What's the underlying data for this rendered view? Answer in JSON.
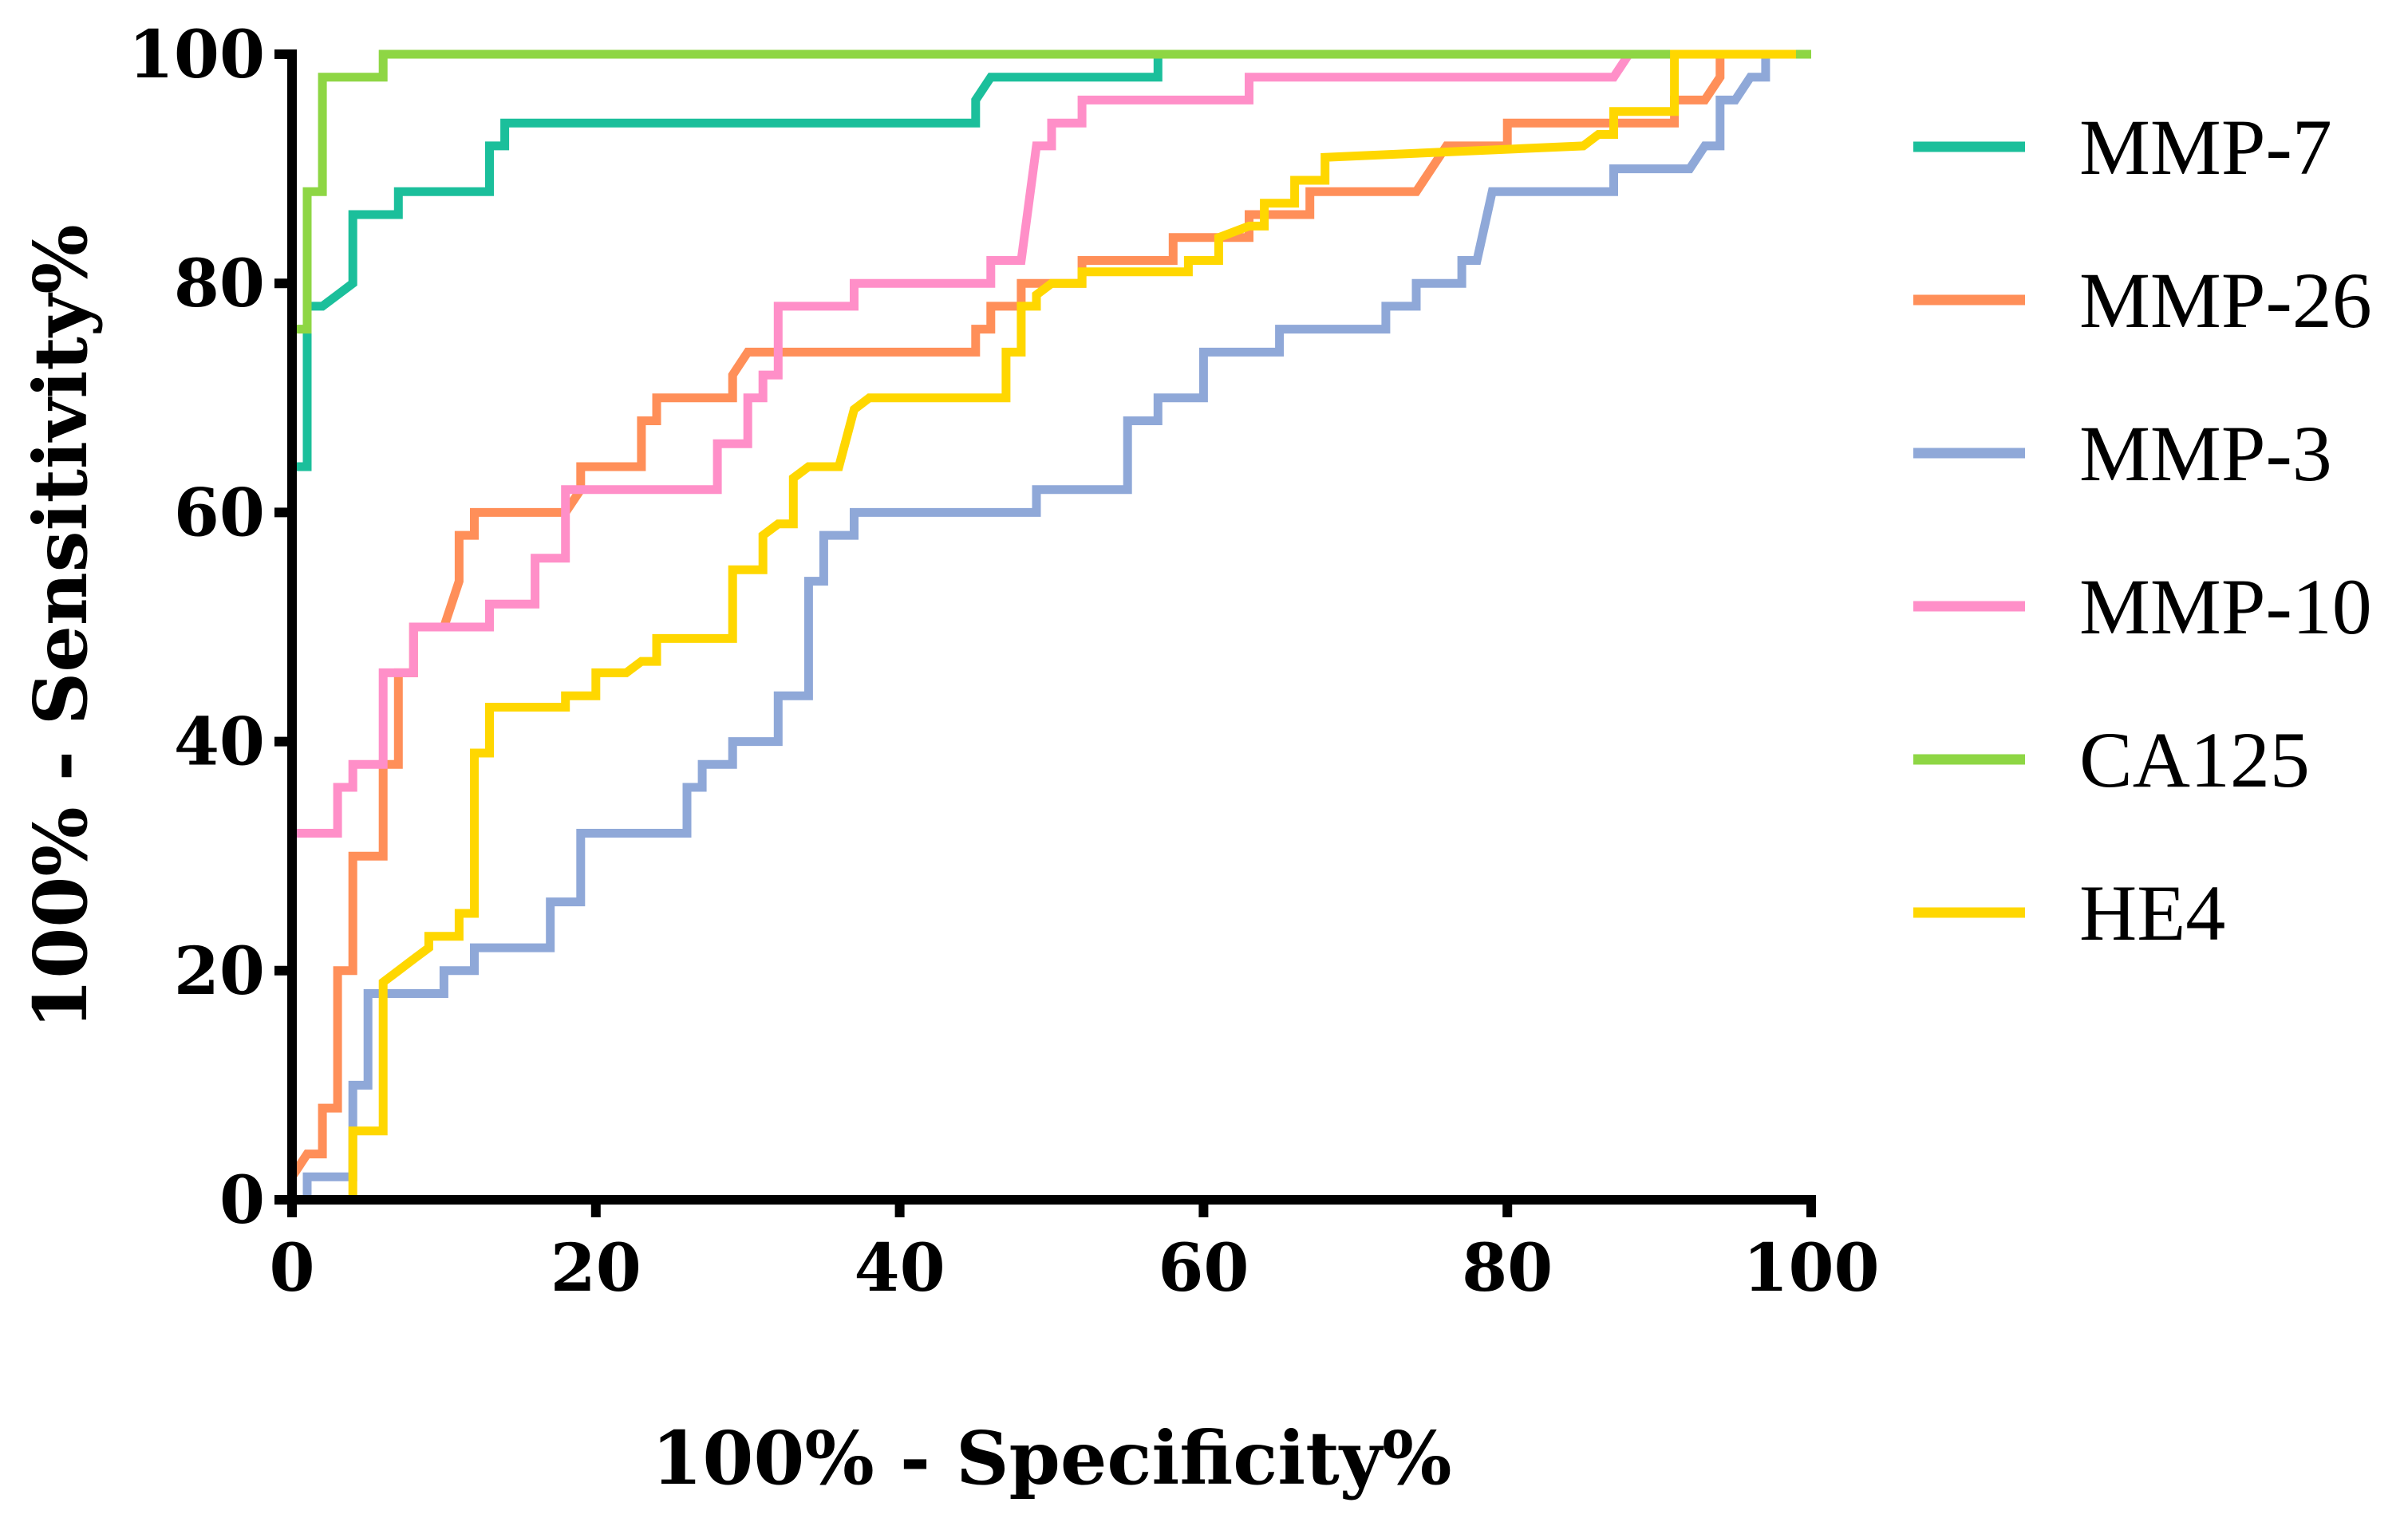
{
  "chart_data": {
    "type": "line",
    "title": "",
    "xlabel": "100% - Specificity%",
    "ylabel": "100% - Sensitivity%",
    "xlim": [
      0,
      100
    ],
    "ylim": [
      0,
      100
    ],
    "xticks": [
      "0",
      "20",
      "40",
      "60",
      "80",
      "100"
    ],
    "yticks": [
      "0",
      "20",
      "40",
      "60",
      "80",
      "100"
    ],
    "legend_position": "right",
    "grid": false,
    "series": [
      {
        "name": "MMP-7",
        "color": "#1bbf9b",
        "points": [
          [
            0,
            64
          ],
          [
            1,
            64
          ],
          [
            1,
            78
          ],
          [
            2,
            78
          ],
          [
            3,
            79
          ],
          [
            4,
            80
          ],
          [
            4,
            86
          ],
          [
            7,
            86
          ],
          [
            7,
            88
          ],
          [
            13,
            88
          ],
          [
            13,
            92
          ],
          [
            14,
            92
          ],
          [
            14,
            94
          ],
          [
            45,
            94
          ],
          [
            45,
            96
          ],
          [
            46,
            98
          ],
          [
            57,
            98
          ],
          [
            57,
            100
          ],
          [
            100,
            100
          ]
        ]
      },
      {
        "name": "MMP-26",
        "color": "#ff8f59",
        "points": [
          [
            0,
            2
          ],
          [
            1,
            4
          ],
          [
            2,
            4
          ],
          [
            2,
            8
          ],
          [
            3,
            8
          ],
          [
            3,
            20
          ],
          [
            4,
            20
          ],
          [
            4,
            30
          ],
          [
            6,
            30
          ],
          [
            6,
            38
          ],
          [
            7,
            38
          ],
          [
            7,
            46
          ],
          [
            8,
            46
          ],
          [
            8,
            50
          ],
          [
            10,
            50
          ],
          [
            11,
            54
          ],
          [
            11,
            58
          ],
          [
            12,
            58
          ],
          [
            12,
            60
          ],
          [
            18,
            60
          ],
          [
            19,
            62
          ],
          [
            19,
            64
          ],
          [
            23,
            64
          ],
          [
            23,
            68
          ],
          [
            24,
            68
          ],
          [
            24,
            70
          ],
          [
            29,
            70
          ],
          [
            29,
            72
          ],
          [
            30,
            74
          ],
          [
            45,
            74
          ],
          [
            45,
            76
          ],
          [
            46,
            76
          ],
          [
            46,
            78
          ],
          [
            48,
            78
          ],
          [
            48,
            80
          ],
          [
            52,
            80
          ],
          [
            52,
            82
          ],
          [
            58,
            82
          ],
          [
            58,
            84
          ],
          [
            63,
            84
          ],
          [
            63,
            86
          ],
          [
            67,
            86
          ],
          [
            67,
            88
          ],
          [
            74,
            88
          ],
          [
            75,
            90
          ],
          [
            76,
            92
          ],
          [
            80,
            92
          ],
          [
            80,
            94
          ],
          [
            91,
            94
          ],
          [
            91,
            96
          ],
          [
            93,
            96
          ],
          [
            94,
            98
          ],
          [
            94,
            100
          ],
          [
            99,
            100
          ]
        ]
      },
      {
        "name": "MMP-3",
        "color": "#8fa8d8",
        "points": [
          [
            0,
            0
          ],
          [
            1,
            0
          ],
          [
            1,
            2
          ],
          [
            4,
            2
          ],
          [
            4,
            10
          ],
          [
            5,
            10
          ],
          [
            5,
            18
          ],
          [
            10,
            18
          ],
          [
            10,
            20
          ],
          [
            12,
            20
          ],
          [
            12,
            22
          ],
          [
            17,
            22
          ],
          [
            17,
            26
          ],
          [
            19,
            26
          ],
          [
            19,
            32
          ],
          [
            26,
            32
          ],
          [
            26,
            36
          ],
          [
            27,
            36
          ],
          [
            27,
            38
          ],
          [
            29,
            38
          ],
          [
            29,
            40
          ],
          [
            32,
            40
          ],
          [
            32,
            44
          ],
          [
            34,
            44
          ],
          [
            34,
            54
          ],
          [
            35,
            54
          ],
          [
            35,
            58
          ],
          [
            37,
            58
          ],
          [
            37,
            60
          ],
          [
            49,
            60
          ],
          [
            49,
            62
          ],
          [
            55,
            62
          ],
          [
            55,
            68
          ],
          [
            57,
            68
          ],
          [
            57,
            70
          ],
          [
            60,
            70
          ],
          [
            60,
            74
          ],
          [
            65,
            74
          ],
          [
            65,
            76
          ],
          [
            72,
            76
          ],
          [
            72,
            78
          ],
          [
            74,
            78
          ],
          [
            74,
            80
          ],
          [
            77,
            80
          ],
          [
            77,
            82
          ],
          [
            78,
            82
          ],
          [
            79,
            88
          ],
          [
            87,
            88
          ],
          [
            87,
            90
          ],
          [
            92,
            90
          ],
          [
            93,
            92
          ],
          [
            94,
            92
          ],
          [
            94,
            96
          ],
          [
            95,
            96
          ],
          [
            96,
            98
          ],
          [
            97,
            98
          ],
          [
            97,
            100
          ],
          [
            100,
            100
          ]
        ]
      },
      {
        "name": "MMP-10",
        "color": "#ff8fc8",
        "points": [
          [
            0,
            32
          ],
          [
            3,
            32
          ],
          [
            3,
            36
          ],
          [
            4,
            36
          ],
          [
            4,
            38
          ],
          [
            6,
            38
          ],
          [
            6,
            46
          ],
          [
            8,
            46
          ],
          [
            8,
            50
          ],
          [
            13,
            50
          ],
          [
            13,
            52
          ],
          [
            16,
            52
          ],
          [
            16,
            56
          ],
          [
            18,
            56
          ],
          [
            18,
            62
          ],
          [
            28,
            62
          ],
          [
            28,
            66
          ],
          [
            30,
            66
          ],
          [
            30,
            70
          ],
          [
            31,
            70
          ],
          [
            31,
            72
          ],
          [
            32,
            72
          ],
          [
            32,
            78
          ],
          [
            37,
            78
          ],
          [
            37,
            80
          ],
          [
            46,
            80
          ],
          [
            46,
            82
          ],
          [
            48,
            82
          ],
          [
            49,
            92
          ],
          [
            50,
            92
          ],
          [
            50,
            94
          ],
          [
            52,
            94
          ],
          [
            52,
            96
          ],
          [
            63,
            96
          ],
          [
            63,
            98
          ],
          [
            87,
            98
          ],
          [
            88,
            100
          ],
          [
            100,
            100
          ]
        ]
      },
      {
        "name": "CA125",
        "color": "#8ed644",
        "points": [
          [
            0,
            0
          ],
          [
            0,
            76
          ],
          [
            1,
            76
          ],
          [
            1,
            88
          ],
          [
            2,
            88
          ],
          [
            2,
            98
          ],
          [
            6,
            98
          ],
          [
            6,
            100
          ],
          [
            100,
            100
          ]
        ]
      },
      {
        "name": "HE4",
        "color": "#ffd700",
        "points": [
          [
            1,
            0
          ],
          [
            4,
            0
          ],
          [
            4,
            6
          ],
          [
            6,
            6
          ],
          [
            6,
            19
          ],
          [
            7,
            20
          ],
          [
            8,
            21
          ],
          [
            9,
            22
          ],
          [
            9,
            23
          ],
          [
            11,
            23
          ],
          [
            11,
            25
          ],
          [
            12,
            25
          ],
          [
            12,
            39
          ],
          [
            13,
            39
          ],
          [
            13,
            43
          ],
          [
            18,
            43
          ],
          [
            18,
            44
          ],
          [
            20,
            44
          ],
          [
            20,
            46
          ],
          [
            22,
            46
          ],
          [
            23,
            47
          ],
          [
            24,
            47
          ],
          [
            24,
            49
          ],
          [
            29,
            49
          ],
          [
            29,
            55
          ],
          [
            31,
            55
          ],
          [
            31,
            58
          ],
          [
            32,
            59
          ],
          [
            33,
            59
          ],
          [
            33,
            63
          ],
          [
            34,
            64
          ],
          [
            36,
            64
          ],
          [
            37,
            69
          ],
          [
            38,
            70
          ],
          [
            47,
            70
          ],
          [
            47,
            74
          ],
          [
            48,
            74
          ],
          [
            48,
            78
          ],
          [
            49,
            78
          ],
          [
            49,
            79
          ],
          [
            50,
            80
          ],
          [
            52,
            80
          ],
          [
            52,
            81
          ],
          [
            59,
            81
          ],
          [
            59,
            82
          ],
          [
            61,
            82
          ],
          [
            61,
            84
          ],
          [
            63,
            85
          ],
          [
            64,
            85
          ],
          [
            64,
            87
          ],
          [
            66,
            87
          ],
          [
            66,
            89
          ],
          [
            68,
            89
          ],
          [
            68,
            91
          ],
          [
            85,
            92
          ],
          [
            86,
            93
          ],
          [
            87,
            93
          ],
          [
            87,
            95
          ],
          [
            91,
            95
          ],
          [
            91,
            100
          ],
          [
            99,
            100
          ]
        ]
      }
    ]
  }
}
